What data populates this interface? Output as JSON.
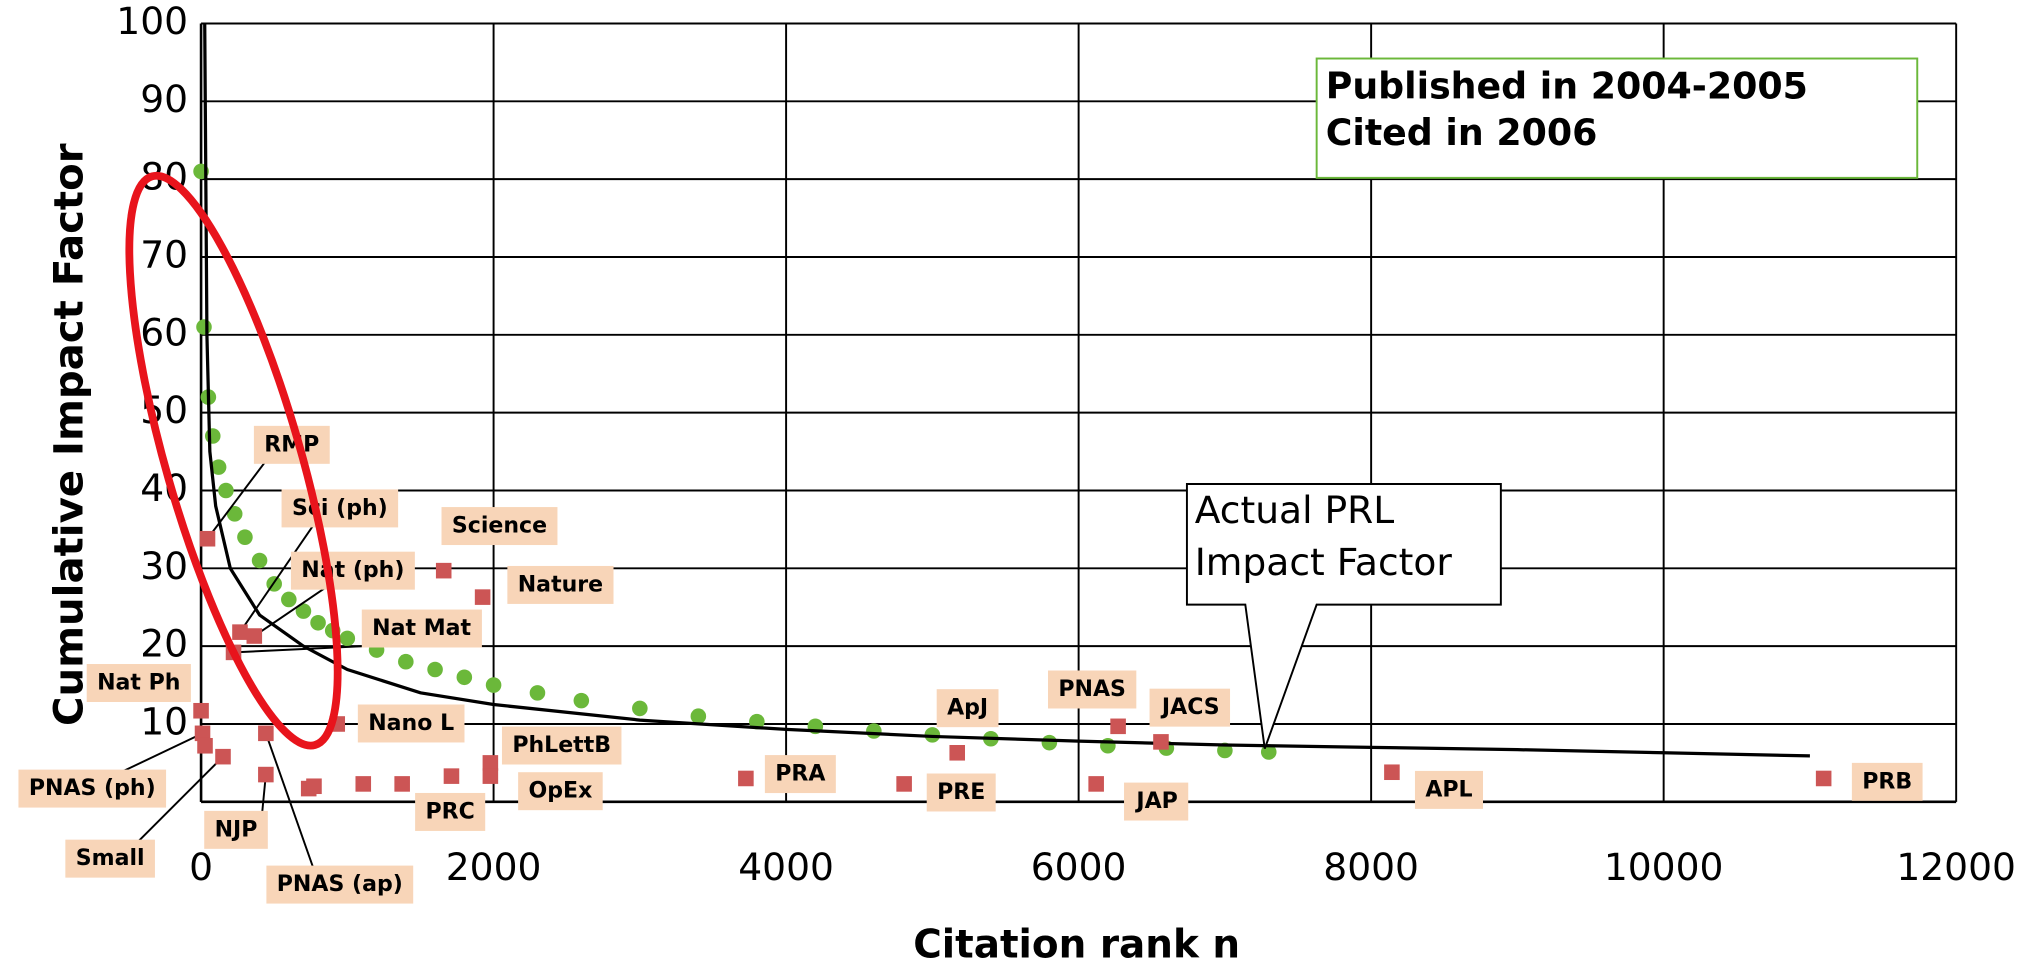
{
  "chart_data": {
    "type": "scatter",
    "x_label": "Citation rank n",
    "y_label": "Cumulative Impact Factor",
    "xlim": [
      0,
      12000
    ],
    "ylim": [
      0,
      100
    ],
    "xticks": [
      0,
      2000,
      4000,
      6000,
      8000,
      10000,
      12000
    ],
    "yticks": [
      10,
      20,
      30,
      40,
      50,
      60,
      70,
      80,
      90,
      100
    ],
    "grid": true,
    "annotations": {
      "box": [
        "Published in 2004-2005",
        "Cited in 2006"
      ],
      "callout": [
        "Actual PRL",
        "Impact Factor"
      ]
    },
    "line": {
      "color": "#000000",
      "x": [
        25,
        40,
        60,
        100,
        200,
        400,
        700,
        1000,
        1500,
        2000,
        3000,
        4000,
        5000,
        6000,
        7000,
        8000,
        9000,
        10000,
        11000
      ],
      "values": [
        100,
        60,
        45,
        38,
        30,
        24,
        20,
        17,
        14,
        12.5,
        10.5,
        9.3,
        8.4,
        7.8,
        7.3,
        7,
        6.7,
        6.3,
        5.9
      ]
    },
    "green_points": {
      "color": "#6bb83a",
      "x": [
        0,
        20,
        50,
        80,
        120,
        170,
        230,
        300,
        400,
        500,
        600,
        700,
        800,
        900,
        1000,
        1200,
        1400,
        1600,
        1800,
        2000,
        2300,
        2600,
        3000,
        3400,
        3800,
        4200,
        4600,
        5000,
        5400,
        5800,
        6200,
        6600,
        7000,
        7300
      ],
      "values": [
        81,
        61,
        52,
        47,
        43,
        40,
        37,
        34,
        31,
        28,
        26,
        24.5,
        23,
        22,
        21,
        19.5,
        18,
        17,
        16,
        15,
        14,
        13,
        12,
        11,
        10.3,
        9.7,
        9.1,
        8.6,
        8.1,
        7.6,
        7.2,
        6.9,
        6.6,
        6.4
      ]
    },
    "journals": {
      "color": "#cc5555",
      "x": [
        44,
        266,
        364,
        222,
        1659,
        1925,
        0,
        10,
        150,
        443,
        443,
        931,
        1978,
        1978,
        1712,
        3725,
        4807,
        5170,
        6270,
        6563,
        6120,
        8142,
        11094,
        27,
        736,
        772,
        1109,
        1375
      ],
      "values": [
        33.8,
        21.8,
        21.3,
        19.2,
        29.7,
        26.3,
        11.7,
        8.8,
        5.8,
        3.5,
        8.8,
        10,
        5,
        3.3,
        3.3,
        3,
        2.3,
        6.3,
        9.7,
        7.7,
        2.3,
        3.8,
        3,
        7.2,
        1.7,
        2,
        2.3,
        2.3
      ],
      "labels": [
        "RMP",
        "Sci (ph)",
        "Nat (ph)",
        "Nat Mat",
        "Science",
        "Nature",
        "Nat Ph",
        "PNAS (ph)",
        "Small",
        "NJP",
        "PNAS (ap)",
        "Nano L",
        "PhLettB",
        "OpEx",
        "PRC",
        "PRA",
        "PRE",
        "ApJ",
        "PNAS",
        "JACS",
        "JAP",
        "APL",
        "PRB",
        null,
        null,
        null,
        null,
        null
      ]
    }
  }
}
